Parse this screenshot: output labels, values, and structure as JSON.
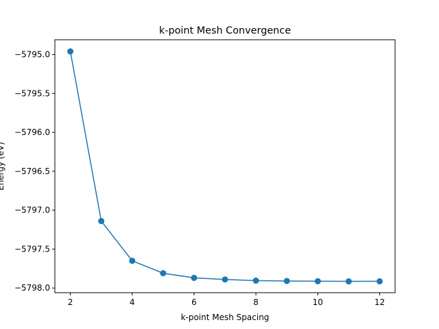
{
  "chart_data": {
    "type": "line",
    "title": "k-point Mesh Convergence",
    "xlabel": "k-point Mesh Spacing",
    "ylabel": "Energy (eV)",
    "x": [
      2,
      3,
      4,
      5,
      6,
      7,
      8,
      9,
      10,
      11,
      12
    ],
    "series": [
      {
        "values": [
          -5794.96,
          -5797.14,
          -5797.65,
          -5797.81,
          -5797.87,
          -5797.89,
          -5797.905,
          -5797.91,
          -5797.913,
          -5797.915,
          -5797.914
        ],
        "color": "#1f77b4",
        "marker": "circle"
      }
    ],
    "xlim": [
      1.5,
      12.5
    ],
    "ylim": [
      -5798.06,
      -5794.81
    ],
    "xticks": [
      2,
      4,
      6,
      8,
      10,
      12
    ],
    "xtick_labels": [
      "2",
      "4",
      "6",
      "8",
      "10",
      "12"
    ],
    "yticks": [
      -5798.0,
      -5797.5,
      -5797.0,
      -5796.5,
      -5796.0,
      -5795.5,
      -5795.0
    ],
    "ytick_labels": [
      "−5798.0",
      "−5797.5",
      "−5797.0",
      "−5796.5",
      "−5796.0",
      "−5795.5",
      "−5795.0"
    ],
    "grid": false,
    "legend": "none"
  }
}
